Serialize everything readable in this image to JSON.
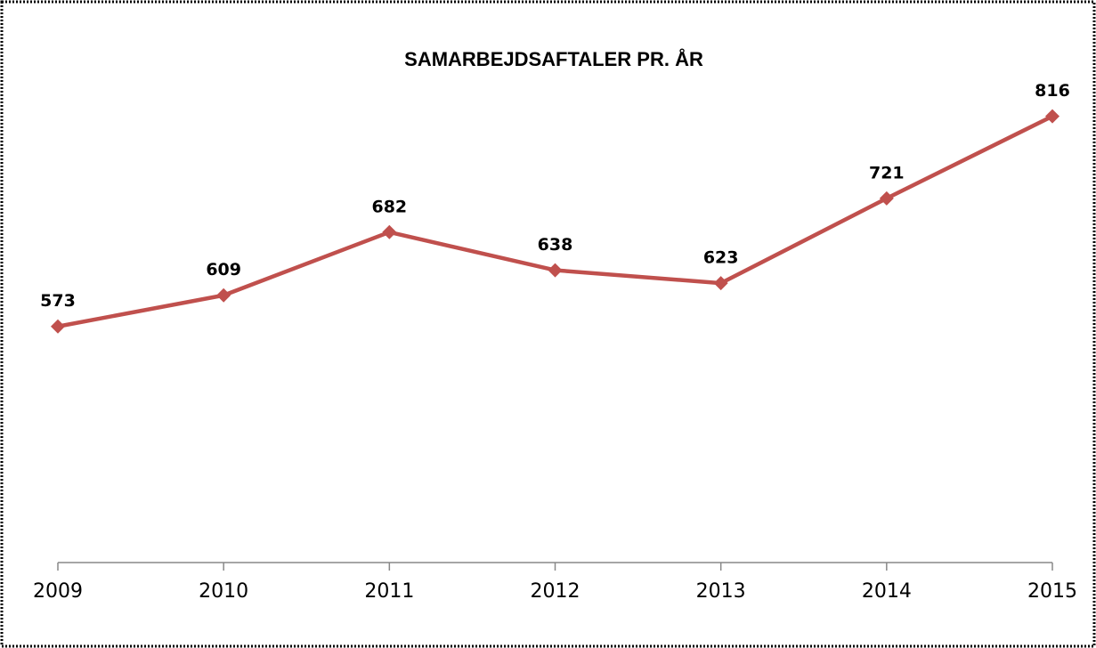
{
  "chart_data": {
    "type": "line",
    "title": "SAMARBEJDSAFTALER PR. ÅR",
    "categories": [
      "2009",
      "2010",
      "2011",
      "2012",
      "2013",
      "2014",
      "2015"
    ],
    "series": [
      {
        "name": null,
        "color": "#c0504d",
        "values": [
          573,
          609,
          682,
          638,
          623,
          721,
          816
        ]
      }
    ],
    "ylim": [
      300,
      830
    ]
  }
}
